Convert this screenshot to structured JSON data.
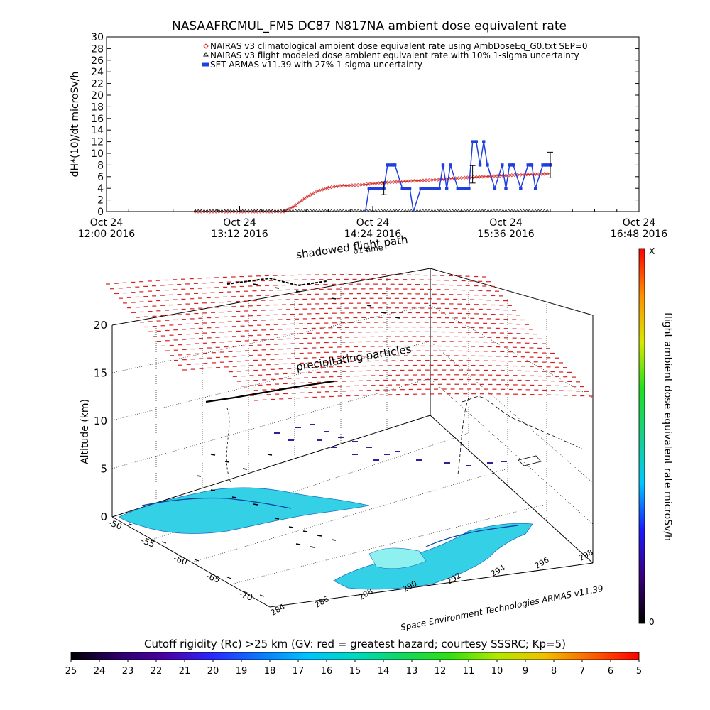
{
  "chart_data": [
    {
      "type": "line",
      "title": "NASAAFRCMUL_FM5 DC87 N817NA ambient dose equivalent rate",
      "ylabel": "dH*(10)/dt microSv/h",
      "ylim": [
        0,
        30
      ],
      "yticks": [
        0,
        2,
        4,
        6,
        8,
        10,
        12,
        14,
        16,
        18,
        20,
        22,
        24,
        26,
        28,
        30
      ],
      "xlim": [
        "Oct 24 12:00 2016",
        "Oct 24 16:48 2016"
      ],
      "xticks": [
        {
          "l1": "Oct 24",
          "l2": "12:00 2016"
        },
        {
          "l1": "Oct 24",
          "l2": "13:12 2016"
        },
        {
          "l1": "Oct 24",
          "l2": "14:24 2016"
        },
        {
          "l1": "Oct 24",
          "l2": "15:36 2016"
        },
        {
          "l1": "Oct 24",
          "l2": "16:48 2016"
        }
      ],
      "legend_position": "top-right",
      "series": [
        {
          "name": "NAIRAS v3 climatological ambient dose equivalent rate using AmbDoseEq_G0.txt SEP=0",
          "marker": "diamond",
          "color": "#d42a2a",
          "x": [
            "12:48",
            "13:00",
            "13:12",
            "13:24",
            "13:36",
            "13:42",
            "13:48",
            "13:54",
            "14:00",
            "14:06",
            "14:12",
            "14:18",
            "14:24",
            "14:36",
            "14:48",
            "15:00",
            "15:12",
            "15:24",
            "15:36",
            "15:48",
            "16:00"
          ],
          "y": [
            0,
            0,
            0,
            0,
            0,
            1.0,
            2.5,
            3.5,
            4.1,
            4.4,
            4.5,
            4.6,
            4.8,
            5.1,
            5.3,
            5.5,
            5.8,
            6.0,
            6.2,
            6.4,
            6.5
          ]
        },
        {
          "name": "NAIRAS v3 flight modeled dose ambient equivalent rate with 10% 1-sigma uncertainty",
          "marker": "triangle",
          "color": "#000000",
          "x": [
            "12:48",
            "13:00",
            "13:12",
            "13:24",
            "13:36",
            "13:48",
            "14:00",
            "14:12",
            "14:24",
            "14:36",
            "14:48",
            "15:00",
            "15:12",
            "15:24",
            "15:36",
            "15:48",
            "16:00"
          ],
          "y": [
            0,
            0,
            0,
            0,
            0,
            0,
            0,
            0,
            0,
            0,
            0,
            0,
            0,
            0,
            0,
            0,
            0
          ]
        },
        {
          "name": "SET ARMAS v11.39 with 27% 1-sigma uncertainty",
          "marker": "square",
          "color": "#1f3fe0",
          "x": [
            "14:20",
            "14:22",
            "14:26",
            "14:30",
            "14:32",
            "14:36",
            "14:40",
            "14:44",
            "14:46",
            "14:50",
            "14:54",
            "15:00",
            "15:02",
            "15:04",
            "15:06",
            "15:10",
            "15:16",
            "15:18",
            "15:20",
            "15:22",
            "15:24",
            "15:26",
            "15:30",
            "15:34",
            "15:36",
            "15:38",
            "15:40",
            "15:44",
            "15:48",
            "15:50",
            "15:52",
            "15:56",
            "15:58",
            "16:00"
          ],
          "y": [
            0,
            4,
            4,
            4,
            8,
            8,
            4,
            4,
            0,
            4,
            4,
            4,
            8,
            4,
            8,
            4,
            4,
            12,
            12,
            8,
            12,
            8,
            4,
            8,
            4,
            8,
            8,
            4,
            8,
            8,
            4,
            8,
            8,
            8
          ]
        }
      ],
      "error_bars": [
        {
          "x": "14:30",
          "y": 4,
          "err": 1.1
        },
        {
          "x": "15:18",
          "y": 6.4,
          "err": 1.5
        },
        {
          "x": "16:00",
          "y": 8,
          "err": 2.2
        }
      ]
    },
    {
      "type": "scatter",
      "title": "",
      "annotations": [
        "shadowed flight path",
        "01 time",
        "precipitating particles"
      ],
      "zlabel": "Altitude (km)",
      "zticks": [
        0,
        5,
        10,
        15,
        20
      ],
      "lat_ticks": [
        -50,
        -55,
        -60,
        -65,
        -70
      ],
      "lon_ticks": [
        284,
        286,
        288,
        290,
        292,
        294,
        296,
        298
      ],
      "credit": "Space Environment Technologies ARMAS v11.39"
    },
    {
      "type": "heatmap",
      "colorbar_label": "flight ambient dose equivalent rate microSv/h",
      "colorbar_top": "X",
      "colorbar_bottom": "0",
      "colorbar_colors": [
        "#000000",
        "#3a007a",
        "#1a1aff",
        "#00c8ff",
        "#18d08a",
        "#20e020",
        "#d8e800",
        "#ff9000",
        "#ff0000"
      ]
    },
    {
      "type": "heatmap",
      "colorbar_label": "Cutoff rigidity (Rc) >25 km (GV: red = greatest hazard; courtesy SSSRC; Kp=5)",
      "ticks": [
        25,
        24,
        23,
        22,
        21,
        20,
        19,
        18,
        17,
        16,
        15,
        14,
        13,
        12,
        11,
        10,
        9,
        8,
        7,
        6,
        5
      ],
      "colors": [
        "#000000",
        "#2c006a",
        "#4b00a8",
        "#2a2aff",
        "#0a78ff",
        "#00c2ff",
        "#00d8c0",
        "#10d860",
        "#30e010",
        "#b0e800",
        "#f0c000",
        "#ff6000",
        "#ff0000"
      ]
    }
  ]
}
